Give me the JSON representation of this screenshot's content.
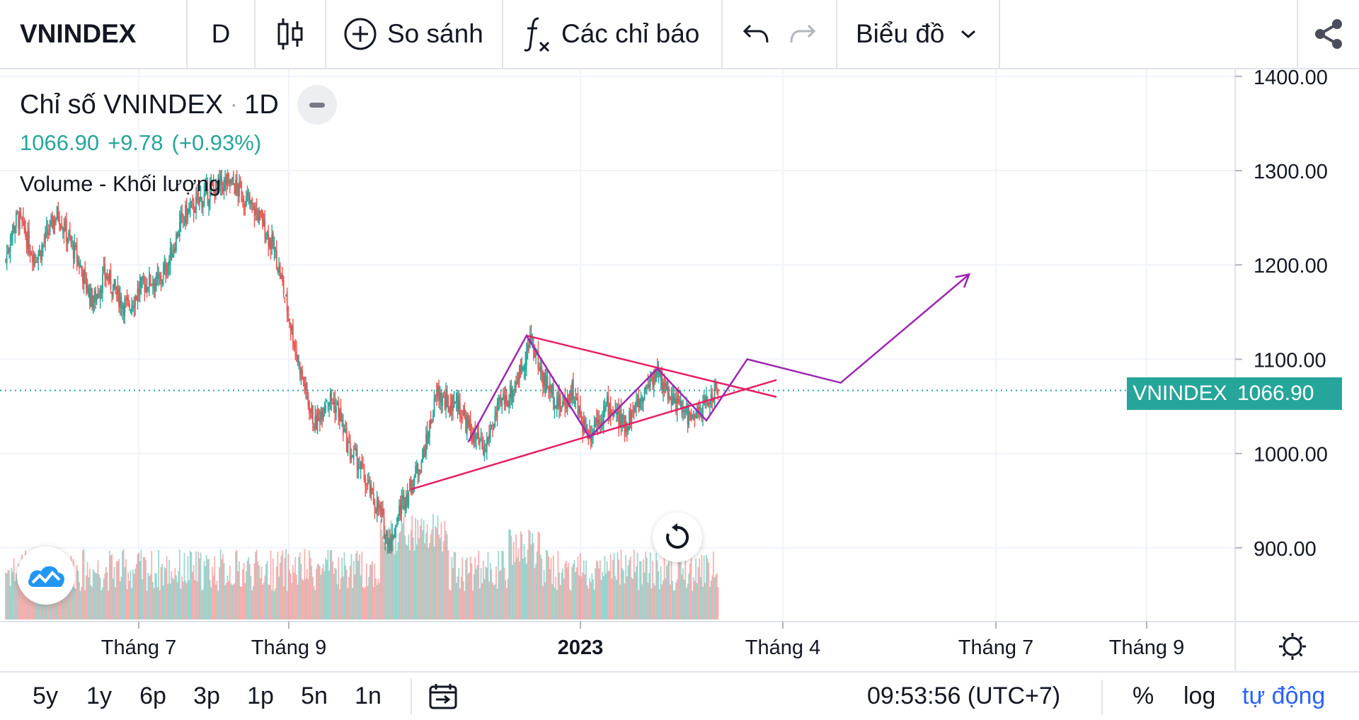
{
  "toolbar": {
    "symbol": "VNINDEX",
    "interval": "D",
    "compare_label": "So sánh",
    "indicators_label": "Các chỉ báo",
    "chart_type_label": "Biểu đồ"
  },
  "legend": {
    "title": "Chỉ số VNINDEX",
    "interval": "1D",
    "last": "1066.90",
    "change": "+9.78",
    "change_pct": "(+0.93%)",
    "volume_label": "Volume - Khối lượng"
  },
  "price_tag": {
    "name": "VNINDEX",
    "value": "1066.90"
  },
  "colors": {
    "up": "#26a69a",
    "down": "#ef5350",
    "trend": "#e91e63",
    "projection": "#9c27b0",
    "accent": "#2962ff"
  },
  "bottombar": {
    "ranges": [
      "5y",
      "1y",
      "6p",
      "3p",
      "1p",
      "5n",
      "1n"
    ],
    "time": "09:53:56 (UTC+7)",
    "percent": "%",
    "log": "log",
    "auto": "tự động"
  },
  "chart_data": {
    "type": "candlestick",
    "y_ticks": [
      "1400.00",
      "1300.00",
      "1200.00",
      "1100.00",
      "1000.00",
      "900.00"
    ],
    "x_ticks": [
      {
        "label": "Tháng 7",
        "bold": false
      },
      {
        "label": "Tháng 9",
        "bold": false
      },
      {
        "label": "2023",
        "bold": true
      },
      {
        "label": "Tháng 4",
        "bold": false
      },
      {
        "label": "Tháng 7",
        "bold": false
      },
      {
        "label": "Tháng 9",
        "bold": false
      }
    ],
    "ylim": [
      824,
      1410
    ],
    "last_price": 1066.9,
    "price_path": [
      [
        0,
        1205
      ],
      [
        5,
        1235
      ],
      [
        10,
        1250
      ],
      [
        15,
        1240
      ],
      [
        20,
        1220
      ],
      [
        25,
        1210
      ],
      [
        30,
        1215
      ],
      [
        35,
        1230
      ],
      [
        40,
        1245
      ],
      [
        45,
        1255
      ],
      [
        50,
        1240
      ],
      [
        55,
        1225
      ],
      [
        60,
        1210
      ],
      [
        65,
        1195
      ],
      [
        70,
        1175
      ],
      [
        75,
        1160
      ],
      [
        80,
        1175
      ],
      [
        85,
        1190
      ],
      [
        90,
        1180
      ],
      [
        95,
        1170
      ],
      [
        100,
        1160
      ],
      [
        105,
        1155
      ],
      [
        110,
        1165
      ],
      [
        115,
        1175
      ],
      [
        120,
        1180
      ],
      [
        125,
        1185
      ],
      [
        130,
        1180
      ],
      [
        135,
        1190
      ],
      [
        140,
        1205
      ],
      [
        145,
        1225
      ],
      [
        150,
        1245
      ],
      [
        155,
        1255
      ],
      [
        160,
        1260
      ],
      [
        165,
        1268
      ],
      [
        170,
        1272
      ],
      [
        175,
        1278
      ],
      [
        180,
        1282
      ],
      [
        185,
        1285
      ],
      [
        190,
        1287
      ],
      [
        195,
        1285
      ],
      [
        200,
        1278
      ],
      [
        205,
        1270
      ],
      [
        210,
        1262
      ],
      [
        215,
        1255
      ],
      [
        220,
        1245
      ],
      [
        225,
        1230
      ],
      [
        230,
        1215
      ],
      [
        235,
        1190
      ],
      [
        240,
        1160
      ],
      [
        245,
        1130
      ],
      [
        250,
        1100
      ],
      [
        255,
        1075
      ],
      [
        260,
        1050
      ],
      [
        265,
        1030
      ],
      [
        270,
        1045
      ],
      [
        275,
        1060
      ],
      [
        280,
        1055
      ],
      [
        285,
        1045
      ],
      [
        290,
        1020
      ],
      [
        295,
        1000
      ],
      [
        300,
        995
      ],
      [
        305,
        980
      ],
      [
        310,
        965
      ],
      [
        315,
        950
      ],
      [
        320,
        940
      ],
      [
        325,
        915
      ],
      [
        330,
        905
      ],
      [
        335,
        930
      ],
      [
        340,
        950
      ],
      [
        345,
        960
      ],
      [
        350,
        975
      ],
      [
        355,
        990
      ],
      [
        360,
        1010
      ],
      [
        365,
        1040
      ],
      [
        370,
        1065
      ],
      [
        375,
        1055
      ],
      [
        380,
        1050
      ],
      [
        385,
        1058
      ],
      [
        390,
        1045
      ],
      [
        395,
        1030
      ],
      [
        400,
        1020
      ],
      [
        405,
        1010
      ],
      [
        410,
        1000
      ],
      [
        415,
        1025
      ],
      [
        420,
        1040
      ],
      [
        425,
        1055
      ],
      [
        430,
        1060
      ],
      [
        435,
        1070
      ],
      [
        440,
        1085
      ],
      [
        445,
        1105
      ],
      [
        450,
        1120
      ],
      [
        455,
        1100
      ],
      [
        460,
        1080
      ],
      [
        465,
        1070
      ],
      [
        470,
        1060
      ],
      [
        475,
        1050
      ],
      [
        480,
        1055
      ],
      [
        485,
        1068
      ],
      [
        490,
        1045
      ],
      [
        495,
        1030
      ],
      [
        500,
        1020
      ],
      [
        505,
        1035
      ],
      [
        510,
        1040
      ],
      [
        515,
        1050
      ],
      [
        520,
        1045
      ],
      [
        525,
        1035
      ],
      [
        530,
        1030
      ],
      [
        535,
        1040
      ],
      [
        540,
        1050
      ],
      [
        545,
        1060
      ],
      [
        550,
        1075
      ],
      [
        555,
        1085
      ],
      [
        560,
        1080
      ],
      [
        565,
        1070
      ],
      [
        570,
        1060
      ],
      [
        575,
        1052
      ],
      [
        580,
        1045
      ],
      [
        585,
        1040
      ],
      [
        590,
        1035
      ],
      [
        595,
        1045
      ],
      [
        600,
        1055
      ],
      [
        605,
        1062
      ],
      [
        610,
        1066
      ]
    ],
    "lines": [
      {
        "name": "support",
        "color": "trend",
        "points": [
          [
            347,
            962
          ],
          [
            660,
            1078
          ]
        ]
      },
      {
        "name": "resistance",
        "color": "trend",
        "points": [
          [
            446,
            1125
          ],
          [
            660,
            1060
          ]
        ]
      },
      {
        "name": "wave",
        "color": "projection",
        "points": [
          [
            396,
            1012
          ],
          [
            446,
            1125
          ],
          [
            500,
            1017
          ],
          [
            558,
            1090
          ],
          [
            600,
            1035
          ],
          [
            635,
            1100
          ],
          [
            715,
            1075
          ],
          [
            825,
            1190
          ]
        ]
      }
    ]
  }
}
